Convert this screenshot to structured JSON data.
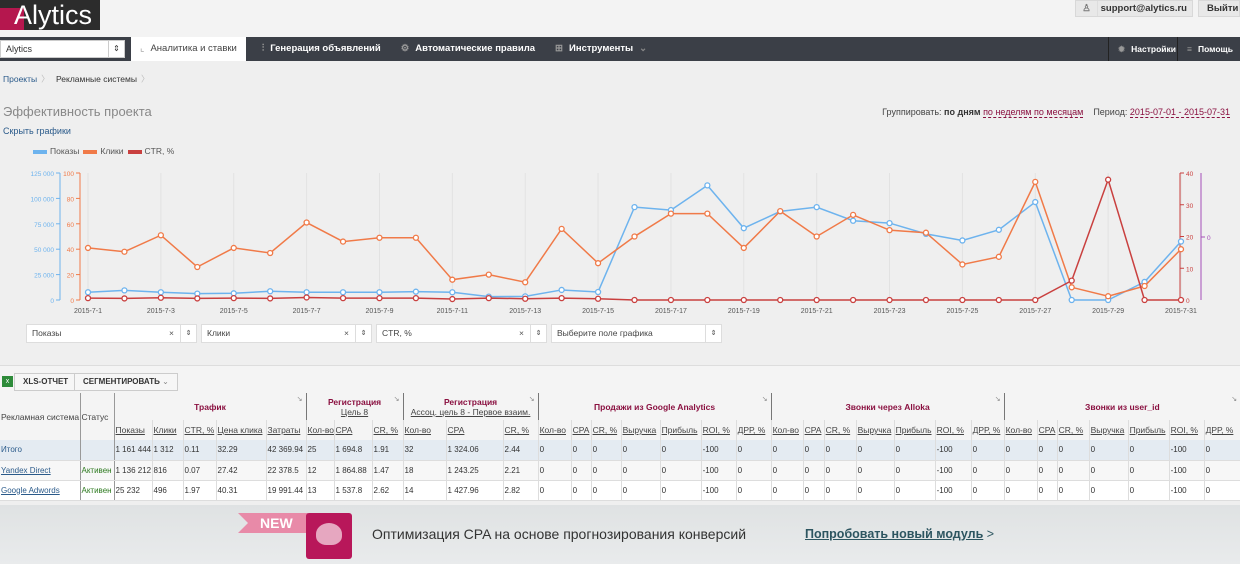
{
  "header": {
    "logo": "Alytics",
    "user_email": "support@alytics.ru",
    "logout": "Выйти"
  },
  "nav": {
    "project": "Alytics",
    "tabs": [
      {
        "label": "Аналитика и ставки",
        "active": true
      },
      {
        "label": "Генерация объявлений"
      },
      {
        "label": "Автоматические правила"
      },
      {
        "label": "Инструменты"
      }
    ],
    "settings": "Настройки",
    "help": "Помощь"
  },
  "breadcrumb": [
    "Проекты",
    "Рекламные системы"
  ],
  "page": {
    "title": "Эффективность проекта",
    "hide_charts": "Скрыть графики",
    "group_label": "Группировать:",
    "group_active": "по дням",
    "group_weeks": "по неделям",
    "group_months": "по месяцам",
    "period_label": "Период:",
    "period": "2015-07-01 - 2015-07-31"
  },
  "colors": {
    "impressions": "#6db3ee",
    "clicks": "#f07a48",
    "ctr": "#c9403f",
    "extra_axis": "#a64fb8",
    "accent": "#8a1040"
  },
  "chart_data": {
    "type": "line",
    "x": [
      "2015-7-1",
      "2015-7-2",
      "2015-7-3",
      "2015-7-4",
      "2015-7-5",
      "2015-7-6",
      "2015-7-7",
      "2015-7-8",
      "2015-7-9",
      "2015-7-10",
      "2015-7-11",
      "2015-7-12",
      "2015-7-13",
      "2015-7-14",
      "2015-7-15",
      "2015-7-16",
      "2015-7-17",
      "2015-7-18",
      "2015-7-19",
      "2015-7-20",
      "2015-7-21",
      "2015-7-22",
      "2015-7-23",
      "2015-7-24",
      "2015-7-25",
      "2015-7-26",
      "2015-7-27",
      "2015-7-28",
      "2015-7-29",
      "2015-7-30",
      "2015-7-31"
    ],
    "x_tick_labels": [
      "2015-7-1",
      "2015-7-3",
      "2015-7-5",
      "2015-7-7",
      "2015-7-9",
      "2015-7-11",
      "2015-7-13",
      "2015-7-15",
      "2015-7-17",
      "2015-7-19",
      "2015-7-21",
      "2015-7-23",
      "2015-7-25",
      "2015-7-27",
      "2015-7-29",
      "2015-7-31"
    ],
    "series": [
      {
        "name": "Показы",
        "axis": "left1",
        "ylim": [
          0,
          125000
        ],
        "ticks": [
          "0",
          "25 000",
          "50 000",
          "75 000",
          "100 000",
          "125 000"
        ],
        "values": [
          7600,
          9500,
          7600,
          6300,
          6600,
          8600,
          7600,
          7600,
          7600,
          8200,
          7600,
          3300,
          3600,
          9900,
          7900,
          91400,
          88500,
          112800,
          70700,
          87200,
          91400,
          78000,
          75700,
          65100,
          58600,
          69100,
          96400,
          0,
          0,
          17800,
          57600
        ]
      },
      {
        "name": "Клики",
        "axis": "left2",
        "ylim": [
          0,
          100
        ],
        "ticks": [
          "0",
          "20",
          "40",
          "60",
          "80",
          "100"
        ],
        "values": [
          41,
          38,
          51,
          26,
          41,
          37,
          61,
          46,
          49,
          49,
          16,
          20,
          14,
          56,
          29,
          50,
          68,
          68,
          41,
          70,
          50,
          67,
          55,
          53,
          28,
          34,
          93,
          10,
          3,
          11,
          40
        ]
      },
      {
        "name": "CTR, %",
        "axis": "right",
        "ylim": [
          0,
          40
        ],
        "ticks": [
          "0",
          "10",
          "20",
          "30",
          "40"
        ],
        "values": [
          0.6,
          0.5,
          0.7,
          0.5,
          0.6,
          0.5,
          0.8,
          0.6,
          0.6,
          0.6,
          0.3,
          0.6,
          0.4,
          0.6,
          0.4,
          0,
          0,
          0,
          0,
          0,
          0,
          0,
          0,
          0,
          0,
          0,
          0,
          6.1,
          37.9,
          0,
          0
        ]
      }
    ],
    "extra_axis_tick": "0",
    "grid": "vertical",
    "legend": "top-left"
  },
  "chart_selectors": [
    {
      "value": "Показы",
      "clearable": true
    },
    {
      "value": "Клики",
      "clearable": true
    },
    {
      "value": "CTR, %",
      "clearable": true
    },
    {
      "value": "Выберите поле графика",
      "clearable": false
    }
  ],
  "toolbar": {
    "xls": "XLS-ОТЧЕТ",
    "segment": "СЕГМЕНТИРОВАТЬ"
  },
  "table": {
    "col_system": "Рекламная система",
    "col_status": "Статус",
    "groups": [
      {
        "title": "Трафик",
        "sub": "",
        "cols": [
          "Показы",
          "Клики",
          "CTR, %",
          "Цена клика",
          "Затраты"
        ]
      },
      {
        "title": "Регистрация",
        "sub": "Цель 8",
        "cols": [
          "Кол-во",
          "CPA",
          "CR, %"
        ]
      },
      {
        "title": "Регистрация",
        "sub": "Ассоц. цель 8 - Первое взаим.",
        "cols": [
          "Кол-во",
          "CPA",
          "CR, %"
        ]
      },
      {
        "title": "Продажи из Google Analytics",
        "sub": "",
        "cols": [
          "Кол-во",
          "CPA",
          "CR, %",
          "Выручка",
          "Прибыль",
          "ROI, %",
          "ДРР, %"
        ]
      },
      {
        "title": "Звонки через Alloka",
        "sub": "",
        "cols": [
          "Кол-во",
          "CPA",
          "CR, %",
          "Выручка",
          "Прибыль",
          "ROI, %",
          "ДРР, %"
        ]
      },
      {
        "title": "Звонки из user_id",
        "sub": "",
        "cols": [
          "Кол-во",
          "CPA",
          "CR, %",
          "Выручка",
          "Прибыль",
          "ROI, %",
          "ДРР, %"
        ]
      }
    ],
    "rows": [
      {
        "name": "Итого",
        "status": "",
        "cells": [
          "1 161 444",
          "1 312",
          "0.11",
          "32.29",
          "42 369.94",
          "25",
          "1 694.8",
          "1.91",
          "32",
          "1 324.06",
          "2.44",
          "0",
          "0",
          "0",
          "0",
          "0",
          "-100",
          "0",
          "0",
          "0",
          "0",
          "0",
          "0",
          "-100",
          "0",
          "0",
          "0",
          "0",
          "0",
          "0",
          "-100",
          "0"
        ]
      },
      {
        "name": "Yandex Direct",
        "status": "Активен",
        "cells": [
          "1 136 212",
          "816",
          "0.07",
          "27.42",
          "22 378.5",
          "12",
          "1 864.88",
          "1.47",
          "18",
          "1 243.25",
          "2.21",
          "0",
          "0",
          "0",
          "0",
          "0",
          "-100",
          "0",
          "0",
          "0",
          "0",
          "0",
          "0",
          "-100",
          "0",
          "0",
          "0",
          "0",
          "0",
          "0",
          "-100",
          "0"
        ]
      },
      {
        "name": "Google Adwords",
        "status": "Активен",
        "cells": [
          "25 232",
          "496",
          "1.97",
          "40.31",
          "19 991.44",
          "13",
          "1 537.8",
          "2.62",
          "14",
          "1 427.96",
          "2.82",
          "0",
          "0",
          "0",
          "0",
          "0",
          "-100",
          "0",
          "0",
          "0",
          "0",
          "0",
          "0",
          "-100",
          "0",
          "0",
          "0",
          "0",
          "0",
          "0",
          "-100",
          "0"
        ]
      }
    ]
  },
  "banner": {
    "badge": "NEW",
    "text": "Оптимизация CPA на основе прогнозирования конверсий",
    "link": "Попробовать новый модуль",
    "link_arrow": ">"
  }
}
